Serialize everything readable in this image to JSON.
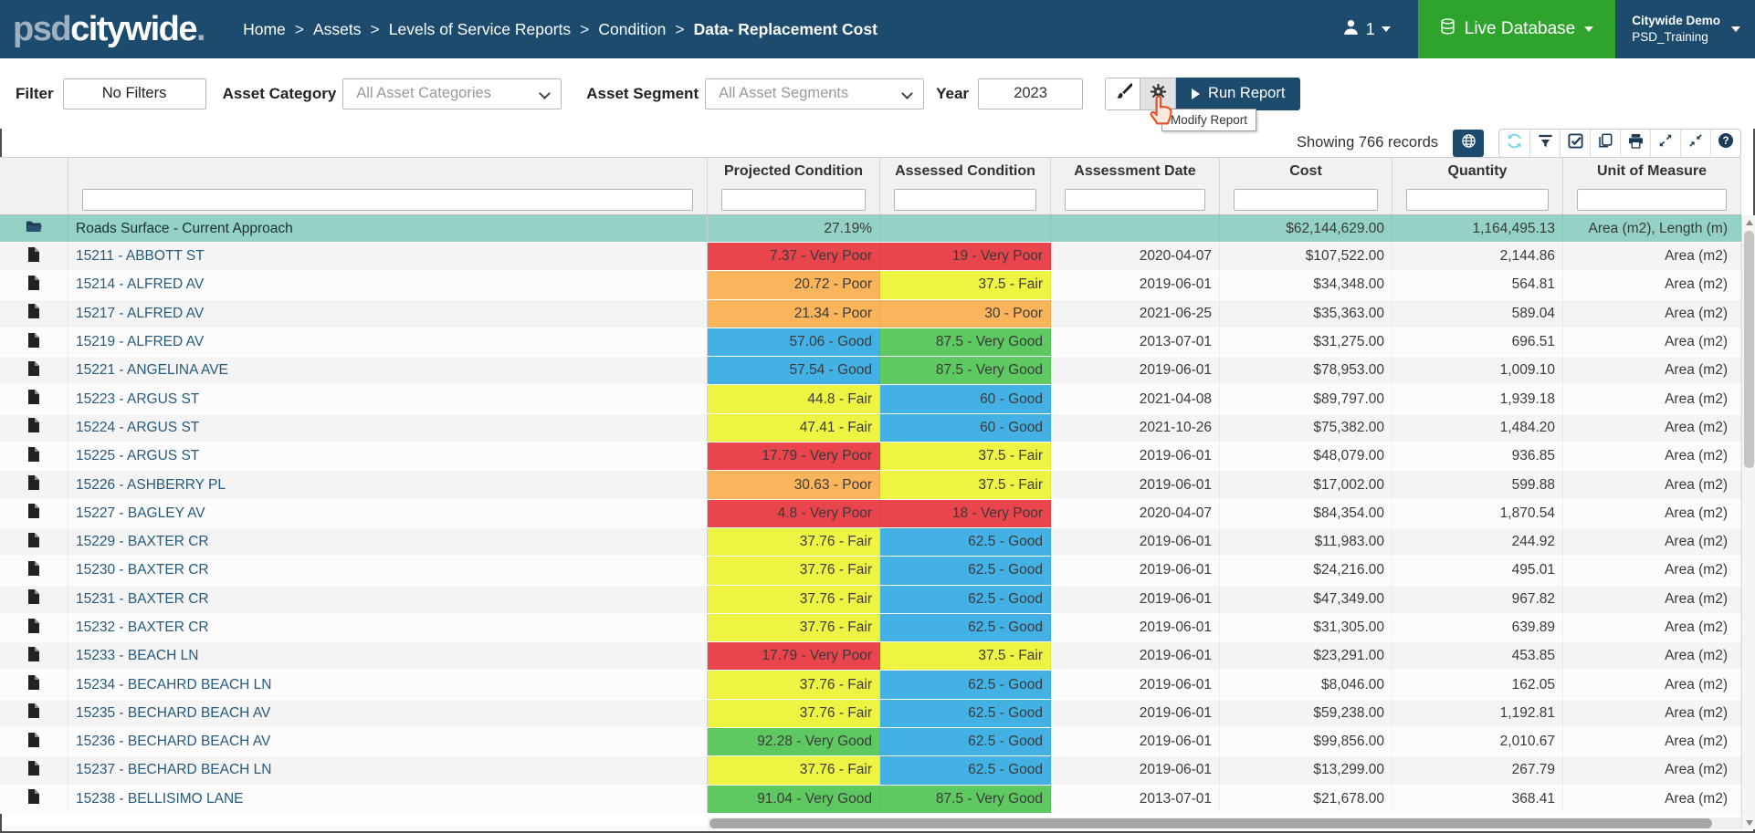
{
  "navbar": {
    "logo_prefix": "psd",
    "logo_main": "citywide",
    "logo_suffix": ".",
    "separator": ">",
    "breadcrumbs": [
      "Home",
      "Assets",
      "Levels of Service Reports",
      "Condition",
      "Data- Replacement Cost"
    ],
    "user_count": "1",
    "live_database_label": "Live Database",
    "account_name": "Citywide Demo",
    "account_sub": "PSD_Training"
  },
  "filter_bar": {
    "filter_label": "Filter",
    "no_filters_label": "No Filters",
    "asset_category_label": "Asset Category",
    "asset_category_value": "All Asset Categories",
    "asset_segment_label": "Asset Segment",
    "asset_segment_value": "All Asset Segments",
    "year_label": "Year",
    "year_value": "2023",
    "run_report_label": "Run Report",
    "modify_report_tooltip": "Modify Report"
  },
  "toolbar": {
    "records_text": "Showing 766 records",
    "icons": [
      "globe",
      "refresh",
      "filter-funnel",
      "select-checkbox",
      "copy",
      "print",
      "expand",
      "collapse",
      "help"
    ]
  },
  "table": {
    "headers": {
      "projected": "Projected Condition",
      "assessed": "Assessed Condition",
      "date": "Assessment Date",
      "cost": "Cost",
      "quantity": "Quantity",
      "unit": "Unit of Measure"
    },
    "summary": {
      "name": "Roads Surface - Current Approach",
      "projected": "27.19%",
      "assessed": "",
      "date": "",
      "cost": "$62,144,629.00",
      "quantity": "1,164,495.13",
      "unit": "Area (m2), Length (m)"
    },
    "rows": [
      {
        "name": "15211 - ABBOTT ST",
        "projected": "7.37 - Very Poor",
        "projected_rating": "very_poor",
        "assessed": "19 - Very Poor",
        "assessed_rating": "very_poor",
        "date": "2020-04-07",
        "cost": "$107,522.00",
        "quantity": "2,144.86",
        "unit": "Area (m2)"
      },
      {
        "name": "15214 - ALFRED AV",
        "projected": "20.72 - Poor",
        "projected_rating": "poor",
        "assessed": "37.5 - Fair",
        "assessed_rating": "fair",
        "date": "2019-06-01",
        "cost": "$34,348.00",
        "quantity": "564.81",
        "unit": "Area (m2)"
      },
      {
        "name": "15217 - ALFRED AV",
        "projected": "21.34 - Poor",
        "projected_rating": "poor",
        "assessed": "30 - Poor",
        "assessed_rating": "poor",
        "date": "2021-06-25",
        "cost": "$35,363.00",
        "quantity": "589.04",
        "unit": "Area (m2)"
      },
      {
        "name": "15219 - ALFRED AV",
        "projected": "57.06 - Good",
        "projected_rating": "good",
        "assessed": "87.5 - Very Good",
        "assessed_rating": "very_good",
        "date": "2013-07-01",
        "cost": "$31,275.00",
        "quantity": "696.51",
        "unit": "Area (m2)"
      },
      {
        "name": "15221 - ANGELINA AVE",
        "projected": "57.54 - Good",
        "projected_rating": "good",
        "assessed": "87.5 - Very Good",
        "assessed_rating": "very_good",
        "date": "2019-06-01",
        "cost": "$78,953.00",
        "quantity": "1,009.10",
        "unit": "Area (m2)"
      },
      {
        "name": "15223 - ARGUS ST",
        "projected": "44.8 - Fair",
        "projected_rating": "fair",
        "assessed": "60 - Good",
        "assessed_rating": "good",
        "date": "2021-04-08",
        "cost": "$89,797.00",
        "quantity": "1,939.18",
        "unit": "Area (m2)"
      },
      {
        "name": "15224 - ARGUS ST",
        "projected": "47.41 - Fair",
        "projected_rating": "fair",
        "assessed": "60 - Good",
        "assessed_rating": "good",
        "date": "2021-10-26",
        "cost": "$75,382.00",
        "quantity": "1,484.20",
        "unit": "Area (m2)"
      },
      {
        "name": "15225 - ARGUS ST",
        "projected": "17.79 - Very Poor",
        "projected_rating": "very_poor",
        "assessed": "37.5 - Fair",
        "assessed_rating": "fair",
        "date": "2019-06-01",
        "cost": "$48,079.00",
        "quantity": "936.85",
        "unit": "Area (m2)"
      },
      {
        "name": "15226 - ASHBERRY PL",
        "projected": "30.63 - Poor",
        "projected_rating": "poor",
        "assessed": "37.5 - Fair",
        "assessed_rating": "fair",
        "date": "2019-06-01",
        "cost": "$17,002.00",
        "quantity": "599.88",
        "unit": "Area (m2)"
      },
      {
        "name": "15227 - BAGLEY AV",
        "projected": "4.8 - Very Poor",
        "projected_rating": "very_poor",
        "assessed": "18 - Very Poor",
        "assessed_rating": "very_poor",
        "date": "2020-04-07",
        "cost": "$84,354.00",
        "quantity": "1,870.54",
        "unit": "Area (m2)"
      },
      {
        "name": "15229 - BAXTER CR",
        "projected": "37.76 - Fair",
        "projected_rating": "fair",
        "assessed": "62.5 - Good",
        "assessed_rating": "good",
        "date": "2019-06-01",
        "cost": "$11,983.00",
        "quantity": "244.92",
        "unit": "Area (m2)"
      },
      {
        "name": "15230 - BAXTER CR",
        "projected": "37.76 - Fair",
        "projected_rating": "fair",
        "assessed": "62.5 - Good",
        "assessed_rating": "good",
        "date": "2019-06-01",
        "cost": "$24,216.00",
        "quantity": "495.01",
        "unit": "Area (m2)"
      },
      {
        "name": "15231 - BAXTER CR",
        "projected": "37.76 - Fair",
        "projected_rating": "fair",
        "assessed": "62.5 - Good",
        "assessed_rating": "good",
        "date": "2019-06-01",
        "cost": "$47,349.00",
        "quantity": "967.82",
        "unit": "Area (m2)"
      },
      {
        "name": "15232 - BAXTER CR",
        "projected": "37.76 - Fair",
        "projected_rating": "fair",
        "assessed": "62.5 - Good",
        "assessed_rating": "good",
        "date": "2019-06-01",
        "cost": "$31,305.00",
        "quantity": "639.89",
        "unit": "Area (m2)"
      },
      {
        "name": "15233 - BEACH LN",
        "projected": "17.79 - Very Poor",
        "projected_rating": "very_poor",
        "assessed": "37.5 - Fair",
        "assessed_rating": "fair",
        "date": "2019-06-01",
        "cost": "$23,291.00",
        "quantity": "453.85",
        "unit": "Area (m2)"
      },
      {
        "name": "15234 - BECAHRD BEACH LN",
        "projected": "37.76 - Fair",
        "projected_rating": "fair",
        "assessed": "62.5 - Good",
        "assessed_rating": "good",
        "date": "2019-06-01",
        "cost": "$8,046.00",
        "quantity": "162.05",
        "unit": "Area (m2)"
      },
      {
        "name": "15235 - BECHARD BEACH AV",
        "projected": "37.76 - Fair",
        "projected_rating": "fair",
        "assessed": "62.5 - Good",
        "assessed_rating": "good",
        "date": "2019-06-01",
        "cost": "$59,238.00",
        "quantity": "1,192.81",
        "unit": "Area (m2)"
      },
      {
        "name": "15236 - BECHARD BEACH AV",
        "projected": "92.28 - Very Good",
        "projected_rating": "very_good",
        "assessed": "62.5 - Good",
        "assessed_rating": "good",
        "date": "2019-06-01",
        "cost": "$99,856.00",
        "quantity": "2,010.67",
        "unit": "Area (m2)"
      },
      {
        "name": "15237 - BECHARD BEACH LN",
        "projected": "37.76 - Fair",
        "projected_rating": "fair",
        "assessed": "62.5 - Good",
        "assessed_rating": "good",
        "date": "2019-06-01",
        "cost": "$13,299.00",
        "quantity": "267.79",
        "unit": "Area (m2)"
      },
      {
        "name": "15238 - BELLISIMO LANE",
        "projected": "91.04 - Very Good",
        "projected_rating": "very_good",
        "assessed": "87.5 - Very Good",
        "assessed_rating": "very_good",
        "date": "2013-07-01",
        "cost": "$21,678.00",
        "quantity": "368.41",
        "unit": "Area (m2)"
      }
    ]
  },
  "colors": {
    "navbar_bg": "#1d4b6e",
    "live_database_green": "#2fa42d",
    "summary_row_teal": "#93d2c4",
    "link_blue": "#265a7d",
    "run_report_bg": "#1d4b6e",
    "toolbar_icon_navy": "#1d3b55",
    "refresh_icon_blue": "#7fd3ea",
    "cursor_orange": "#e4552f",
    "ratings": {
      "very_poor": "#ea444d",
      "poor": "#f9b45c",
      "fair": "#eef442",
      "good": "#44b1e5",
      "very_good": "#5fc961"
    }
  }
}
